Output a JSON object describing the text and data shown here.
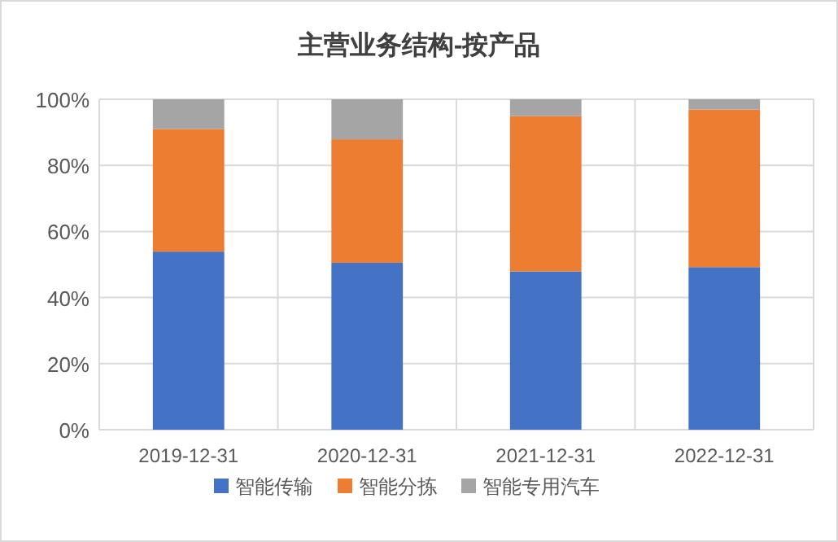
{
  "chart_data": {
    "type": "bar",
    "title": "主营业务结构-按产品",
    "stacked": true,
    "categories": [
      "2019-12-31",
      "2020-12-31",
      "2021-12-31",
      "2022-12-31"
    ],
    "series": [
      {
        "name": "智能传输",
        "color": "#4472c4",
        "values": [
          53.9,
          50.5,
          47.9,
          49.2
        ]
      },
      {
        "name": "智能分拣",
        "color": "#ed7d31",
        "values": [
          37.1,
          37.4,
          47.0,
          47.7
        ]
      },
      {
        "name": "智能专用汽车",
        "color": "#a5a5a5",
        "values": [
          9.0,
          12.1,
          5.1,
          3.1
        ]
      }
    ],
    "ylim": [
      0,
      100
    ],
    "yticks": [
      {
        "value": 0,
        "label": "0%"
      },
      {
        "value": 20,
        "label": "20%"
      },
      {
        "value": 40,
        "label": "40%"
      },
      {
        "value": 60,
        "label": "60%"
      },
      {
        "value": 80,
        "label": "80%"
      },
      {
        "value": 100,
        "label": "100%"
      }
    ],
    "grid": true,
    "legend": "bottom"
  }
}
